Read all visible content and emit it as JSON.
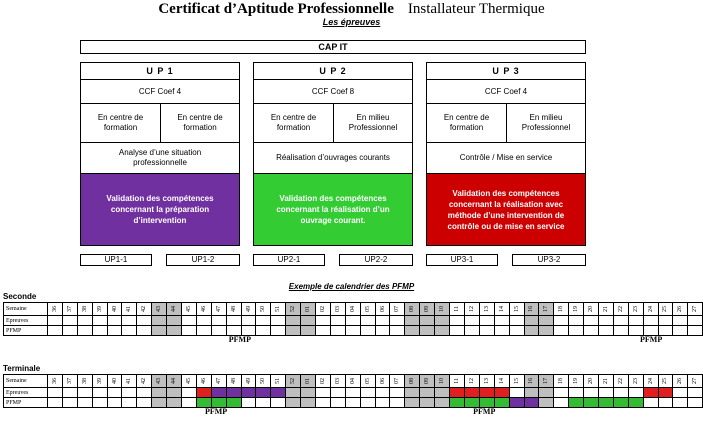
{
  "header": {
    "title": "Certificat d’Aptitude Professionnelle",
    "subtitle": "Installateur Thermique",
    "section": "Les épreuves"
  },
  "diagram": {
    "cap_label": "CAP IT",
    "units": [
      {
        "name": "U P 1",
        "ccf": "CCF Coef 4",
        "left_cell": "En centre de formation",
        "right_cell": "En centre de formation",
        "activity": "Analyse d’une situation professionnelle",
        "validation": "Validation des compétences concernant la préparation d’intervention",
        "validation_color": "#7030a0",
        "sub_left": "UP1-1",
        "sub_right": "UP1-2"
      },
      {
        "name": "U P 2",
        "ccf": "CCF Coef 8",
        "left_cell": "En centre de formation",
        "right_cell": "En milieu Professionnel",
        "activity": "Réalisation d’ouvrages courants",
        "validation": "Validation des compétences concernant la réalisation d’un ouvrage courant.",
        "validation_color": "#33cc33",
        "sub_left": "UP2-1",
        "sub_right": "UP2-2"
      },
      {
        "name": "U P 3",
        "ccf": "CCF Coef 4",
        "left_cell": "En centre de formation",
        "right_cell": "En milieu Professionnel",
        "activity": "Contrôle / Mise en service",
        "validation": "Validation des compétences concernant la réalisation avec méthode d’une intervention de contrôle ou de mise en service",
        "validation_color": "#cc0000",
        "sub_left": "UP3-1",
        "sub_right": "UP3-2"
      }
    ]
  },
  "calendar": {
    "title": "Exemple de calendrier des PFMP",
    "row_labels": [
      "Semaine",
      "Epreuves",
      "PFMP"
    ],
    "weeks": [
      "36",
      "37",
      "38",
      "39",
      "40",
      "41",
      "42",
      "43",
      "44",
      "45",
      "46",
      "47",
      "48",
      "49",
      "50",
      "51",
      "52",
      "01",
      "02",
      "03",
      "04",
      "05",
      "06",
      "07",
      "08",
      "09",
      "10",
      "11",
      "12",
      "13",
      "14",
      "15",
      "16",
      "17",
      "18",
      "19",
      "20",
      "21",
      "22",
      "23",
      "24",
      "25",
      "26",
      "27"
    ],
    "gray_weeks": [
      "43",
      "44",
      "52",
      "01",
      "08",
      "09",
      "10",
      "16",
      "17"
    ],
    "seconde": {
      "label": "Seconde",
      "pfmp_label_1": "PFMP",
      "pfmp_label_2": "PFMP"
    },
    "terminale": {
      "label": "Terminale",
      "pfmp_label_1": "PFMP",
      "pfmp_label_2": "PFMP",
      "colors": {
        "red": "#e02020",
        "green": "#33bb33",
        "purple": "#7030a0"
      }
    }
  }
}
